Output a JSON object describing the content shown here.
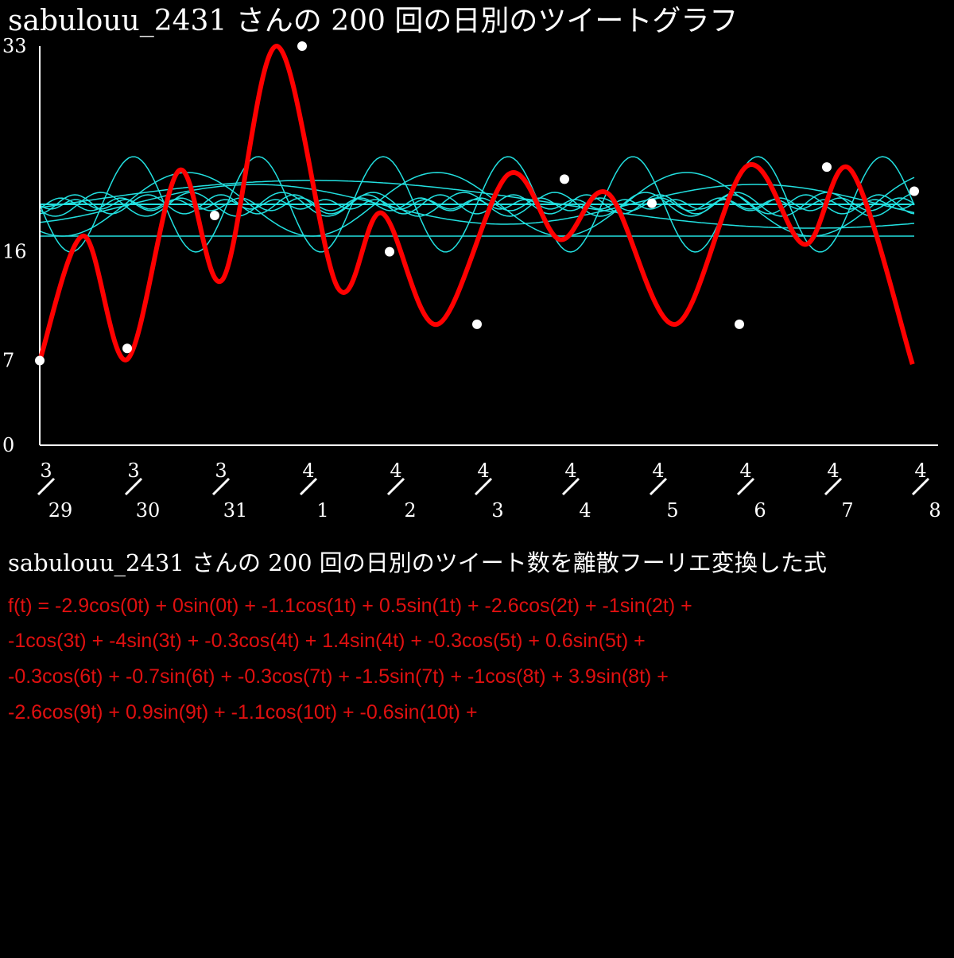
{
  "chart_data": {
    "type": "scatter",
    "title": "sabulouu_2431 さんの 200 回の日別のツイートグラフ",
    "categories": [
      {
        "month": "3",
        "day": "29"
      },
      {
        "month": "3",
        "day": "30"
      },
      {
        "month": "3",
        "day": "31"
      },
      {
        "month": "4",
        "day": "1"
      },
      {
        "month": "4",
        "day": "2"
      },
      {
        "month": "4",
        "day": "3"
      },
      {
        "month": "4",
        "day": "4"
      },
      {
        "month": "4",
        "day": "5"
      },
      {
        "month": "4",
        "day": "6"
      },
      {
        "month": "4",
        "day": "7"
      },
      {
        "month": "4",
        "day": "8"
      }
    ],
    "values": [
      7,
      8,
      19,
      33,
      16,
      10,
      22,
      20,
      10,
      23,
      21
    ],
    "color": "#ffffff",
    "curve": {
      "color": "#ff0000",
      "x": [
        0,
        0.5,
        1,
        1.59,
        2.09,
        2.71,
        3.41,
        3.91,
        4.55,
        5.36,
        5.95,
        6.5,
        7.27,
        8.09,
        8.75,
        9.27,
        9.98
      ],
      "values": [
        7,
        17.3,
        7.1,
        22.7,
        13.7,
        33,
        13,
        19.2,
        10,
        22.4,
        17,
        20.8,
        10,
        23.1,
        16.6,
        22.8,
        6.7
      ]
    },
    "ylim": [
      0,
      33
    ],
    "yticks": [
      0,
      7,
      16,
      33
    ]
  },
  "formula_section": {
    "heading": "sabulouu_2431 さんの 200 回の日別のツイート数を離散フーリエ変換した式",
    "lines": [
      "f(t) = -2.9cos(0t) + 0sin(0t) + -1.1cos(1t) + 0.5sin(1t) + -2.6cos(2t) + -1sin(2t) +",
      "-1cos(3t) + -4sin(3t) + -0.3cos(4t) + 1.4sin(4t) + -0.3cos(5t) + 0.6sin(5t) +",
      "-0.3cos(6t) + -0.7sin(6t) + -0.3cos(7t) + -1.5sin(7t) + -1cos(8t) + 3.9sin(8t) +",
      "-2.6cos(9t) + 0.9sin(9t) + -1.1cos(10t) + -0.6sin(10t) +"
    ]
  }
}
